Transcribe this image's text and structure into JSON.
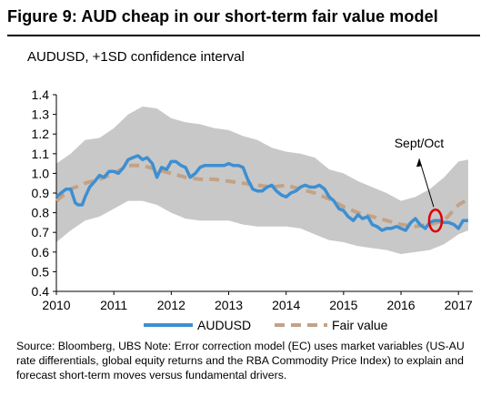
{
  "figure": {
    "title": "Figure 9: AUD cheap in our short-term fair value model",
    "subtitle": "AUDUSD, +1SD confidence interval",
    "source": "Source: Bloomberg, UBS  Note: Error correction model (EC) uses market variables (US-AU rate differentials, global equity returns and the RBA Commodity Price Index) to explain and forecast short-term moves versus fundamental drivers."
  },
  "chart_data": {
    "type": "line",
    "ylim": [
      0.4,
      1.4
    ],
    "yticks": [
      "0.4",
      "0.5",
      "0.6",
      "0.7",
      "0.8",
      "0.9",
      "1.0",
      "1.1",
      "1.2",
      "1.3",
      "1.4"
    ],
    "xlim": [
      2010,
      2017.25
    ],
    "xticks": [
      "2010",
      "2011",
      "2012",
      "2013",
      "2014",
      "2015",
      "2016",
      "2017"
    ],
    "legend_position": "bottom",
    "annotation": {
      "text": "Sept/Oct",
      "x": 2016.6,
      "y": 0.76
    },
    "colors": {
      "audusd": "#3d8fd1",
      "fair_value": "#c4a285",
      "band": "#c8c8c8",
      "circle": "#e00000"
    },
    "series": [
      {
        "name": "AUDUSD",
        "style": "solid",
        "x": [
          2010.0,
          2010.08,
          2010.17,
          2010.25,
          2010.33,
          2010.38,
          2010.45,
          2010.5,
          2010.58,
          2010.67,
          2010.75,
          2010.83,
          2010.92,
          2011.0,
          2011.08,
          2011.17,
          2011.25,
          2011.33,
          2011.42,
          2011.5,
          2011.58,
          2011.67,
          2011.75,
          2011.83,
          2011.92,
          2012.0,
          2012.08,
          2012.17,
          2012.25,
          2012.33,
          2012.42,
          2012.5,
          2012.58,
          2012.67,
          2012.75,
          2012.83,
          2012.92,
          2013.0,
          2013.08,
          2013.17,
          2013.25,
          2013.33,
          2013.42,
          2013.5,
          2013.58,
          2013.67,
          2013.75,
          2013.83,
          2013.92,
          2014.0,
          2014.08,
          2014.17,
          2014.25,
          2014.33,
          2014.42,
          2014.5,
          2014.58,
          2014.67,
          2014.75,
          2014.83,
          2014.92,
          2015.0,
          2015.08,
          2015.17,
          2015.25,
          2015.33,
          2015.42,
          2015.5,
          2015.58,
          2015.67,
          2015.75,
          2015.83,
          2015.92,
          2016.0,
          2016.08,
          2016.17,
          2016.25,
          2016.33,
          2016.42,
          2016.5,
          2016.58,
          2016.67,
          2016.75,
          2016.83,
          2016.92,
          2017.0,
          2017.08,
          2017.17
        ],
        "y": [
          0.88,
          0.9,
          0.92,
          0.92,
          0.85,
          0.84,
          0.84,
          0.88,
          0.93,
          0.96,
          0.99,
          0.98,
          1.01,
          1.01,
          1.0,
          1.03,
          1.07,
          1.08,
          1.09,
          1.07,
          1.08,
          1.05,
          0.98,
          1.03,
          1.02,
          1.06,
          1.06,
          1.04,
          1.03,
          0.98,
          1.0,
          1.03,
          1.04,
          1.04,
          1.04,
          1.04,
          1.04,
          1.05,
          1.04,
          1.04,
          1.03,
          0.97,
          0.92,
          0.91,
          0.91,
          0.93,
          0.94,
          0.91,
          0.89,
          0.88,
          0.9,
          0.91,
          0.93,
          0.94,
          0.93,
          0.93,
          0.94,
          0.92,
          0.88,
          0.86,
          0.82,
          0.81,
          0.78,
          0.76,
          0.79,
          0.77,
          0.78,
          0.74,
          0.73,
          0.71,
          0.72,
          0.72,
          0.73,
          0.72,
          0.71,
          0.75,
          0.77,
          0.74,
          0.72,
          0.75,
          0.76,
          0.76,
          0.75,
          0.75,
          0.74,
          0.72,
          0.76,
          0.76
        ]
      },
      {
        "name": "Fair value",
        "style": "dashed",
        "x": [
          2010.0,
          2010.25,
          2010.5,
          2010.75,
          2011.0,
          2011.25,
          2011.5,
          2011.75,
          2012.0,
          2012.25,
          2012.5,
          2012.75,
          2013.0,
          2013.25,
          2013.5,
          2013.75,
          2014.0,
          2014.25,
          2014.5,
          2014.75,
          2015.0,
          2015.25,
          2015.5,
          2015.75,
          2016.0,
          2016.25,
          2016.5,
          2016.75,
          2017.0,
          2017.17
        ],
        "y": [
          0.86,
          0.92,
          0.95,
          0.97,
          1.0,
          1.04,
          1.04,
          1.02,
          1.0,
          0.98,
          0.97,
          0.97,
          0.96,
          0.95,
          0.94,
          0.93,
          0.94,
          0.92,
          0.9,
          0.87,
          0.83,
          0.8,
          0.78,
          0.76,
          0.74,
          0.73,
          0.74,
          0.76,
          0.84,
          0.87
        ]
      }
    ],
    "confidence_band": {
      "x": [
        2010.0,
        2010.25,
        2010.5,
        2010.75,
        2011.0,
        2011.25,
        2011.5,
        2011.75,
        2012.0,
        2012.25,
        2012.5,
        2012.75,
        2013.0,
        2013.25,
        2013.5,
        2013.75,
        2014.0,
        2014.25,
        2014.5,
        2014.75,
        2015.0,
        2015.25,
        2015.5,
        2015.75,
        2016.0,
        2016.25,
        2016.5,
        2016.75,
        2017.0,
        2017.17
      ],
      "upper": [
        1.05,
        1.1,
        1.17,
        1.18,
        1.23,
        1.3,
        1.34,
        1.33,
        1.28,
        1.26,
        1.25,
        1.23,
        1.22,
        1.19,
        1.17,
        1.13,
        1.11,
        1.1,
        1.08,
        1.02,
        1.0,
        0.96,
        0.93,
        0.9,
        0.86,
        0.88,
        0.92,
        0.98,
        1.06,
        1.07
      ],
      "lower": [
        0.65,
        0.71,
        0.76,
        0.78,
        0.82,
        0.86,
        0.86,
        0.84,
        0.8,
        0.77,
        0.76,
        0.76,
        0.76,
        0.74,
        0.73,
        0.73,
        0.73,
        0.72,
        0.69,
        0.66,
        0.65,
        0.63,
        0.62,
        0.61,
        0.59,
        0.6,
        0.61,
        0.64,
        0.69,
        0.71
      ]
    }
  }
}
